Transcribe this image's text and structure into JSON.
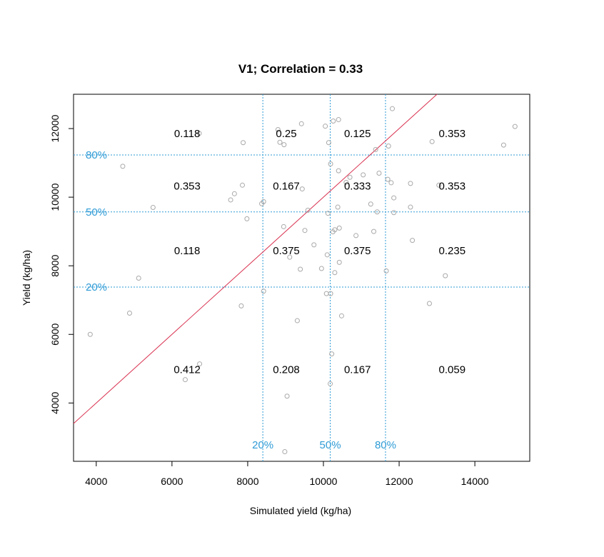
{
  "chart_data": {
    "type": "scatter",
    "title": "V1; Correlation = 0.33",
    "xlabel": "Simulated yield (kg/ha)",
    "ylabel": "Yield (kg/ha)",
    "xlim": [
      3400,
      15450
    ],
    "ylim": [
      2300,
      13000
    ],
    "x_ticks": [
      4000,
      6000,
      8000,
      10000,
      12000,
      14000
    ],
    "x_tick_labels": [
      "4000",
      "6000",
      "8000",
      "10000",
      "12000",
      "14000"
    ],
    "y_ticks": [
      4000,
      6000,
      8000,
      10000,
      12000
    ],
    "y_tick_labels": [
      "4000",
      "6000",
      "8000",
      "10000",
      "12000"
    ],
    "colors": {
      "points": "#a9a9a9",
      "diagonal": "#d9304f",
      "quantile": "#2e9bd6",
      "frame": "#000000"
    },
    "diagonal": {
      "slope": 1,
      "intercept": 0
    },
    "quantile_x": [
      {
        "value": 8400,
        "label": "20%"
      },
      {
        "value": 10180,
        "label": "50%"
      },
      {
        "value": 11640,
        "label": "80%"
      }
    ],
    "quantile_y": [
      {
        "value": 7380,
        "label": "20%"
      },
      {
        "value": 9570,
        "label": "50%"
      },
      {
        "value": 11230,
        "label": "80%"
      }
    ],
    "cell_probabilities": [
      {
        "x": 6400,
        "y": 11850,
        "label": "0.118"
      },
      {
        "x": 9020,
        "y": 11850,
        "label": "0.25"
      },
      {
        "x": 10900,
        "y": 11850,
        "label": "0.125"
      },
      {
        "x": 13400,
        "y": 11850,
        "label": "0.353"
      },
      {
        "x": 6400,
        "y": 10330,
        "label": "0.353"
      },
      {
        "x": 9020,
        "y": 10330,
        "label": "0.167"
      },
      {
        "x": 10900,
        "y": 10330,
        "label": "0.333"
      },
      {
        "x": 13400,
        "y": 10330,
        "label": "0.353"
      },
      {
        "x": 6400,
        "y": 8440,
        "label": "0.118"
      },
      {
        "x": 9020,
        "y": 8440,
        "label": "0.375"
      },
      {
        "x": 10900,
        "y": 8440,
        "label": "0.375"
      },
      {
        "x": 13400,
        "y": 8440,
        "label": "0.235"
      },
      {
        "x": 6400,
        "y": 4970,
        "label": "0.412"
      },
      {
        "x": 9020,
        "y": 4970,
        "label": "0.208"
      },
      {
        "x": 10900,
        "y": 4970,
        "label": "0.167"
      },
      {
        "x": 13400,
        "y": 4970,
        "label": "0.059"
      }
    ],
    "points": [
      [
        3840,
        6000
      ],
      [
        4700,
        10900
      ],
      [
        4880,
        6620
      ],
      [
        5120,
        7640
      ],
      [
        5500,
        9700
      ],
      [
        6350,
        4680
      ],
      [
        6720,
        11860
      ],
      [
        6730,
        5140
      ],
      [
        7550,
        9920
      ],
      [
        7650,
        10100
      ],
      [
        7830,
        6830
      ],
      [
        7860,
        10350
      ],
      [
        7880,
        11590
      ],
      [
        7980,
        9370
      ],
      [
        8370,
        9810
      ],
      [
        8420,
        7260
      ],
      [
        8420,
        9870
      ],
      [
        8800,
        11970
      ],
      [
        8850,
        11600
      ],
      [
        8950,
        9140
      ],
      [
        8960,
        11530
      ],
      [
        8980,
        2580
      ],
      [
        9040,
        4200
      ],
      [
        9110,
        8250
      ],
      [
        9310,
        6400
      ],
      [
        9390,
        7900
      ],
      [
        9420,
        12140
      ],
      [
        9440,
        10240
      ],
      [
        9510,
        9030
      ],
      [
        9590,
        9620
      ],
      [
        9750,
        8610
      ],
      [
        9950,
        7920
      ],
      [
        10050,
        12070
      ],
      [
        10080,
        7190
      ],
      [
        10100,
        8320
      ],
      [
        10120,
        9530
      ],
      [
        10140,
        11590
      ],
      [
        10180,
        4560
      ],
      [
        10190,
        10970
      ],
      [
        10190,
        7190
      ],
      [
        10220,
        5430
      ],
      [
        10250,
        8990
      ],
      [
        10260,
        12220
      ],
      [
        10300,
        9050
      ],
      [
        10300,
        7800
      ],
      [
        10380,
        9710
      ],
      [
        10400,
        10770
      ],
      [
        10400,
        12260
      ],
      [
        10420,
        8100
      ],
      [
        10420,
        9100
      ],
      [
        10480,
        6540
      ],
      [
        10600,
        10430
      ],
      [
        10700,
        10580
      ],
      [
        10860,
        8880
      ],
      [
        11050,
        10650
      ],
      [
        11250,
        9800
      ],
      [
        11330,
        9000
      ],
      [
        11380,
        11390
      ],
      [
        11420,
        9570
      ],
      [
        11470,
        10700
      ],
      [
        11660,
        7850
      ],
      [
        11700,
        10520
      ],
      [
        11720,
        11490
      ],
      [
        11790,
        10420
      ],
      [
        11820,
        12580
      ],
      [
        11860,
        9980
      ],
      [
        11860,
        9550
      ],
      [
        12300,
        10400
      ],
      [
        12300,
        9710
      ],
      [
        12350,
        8740
      ],
      [
        12800,
        6900
      ],
      [
        12870,
        11620
      ],
      [
        13050,
        10350
      ],
      [
        13220,
        7710
      ],
      [
        14760,
        11520
      ],
      [
        15060,
        12060
      ]
    ]
  }
}
